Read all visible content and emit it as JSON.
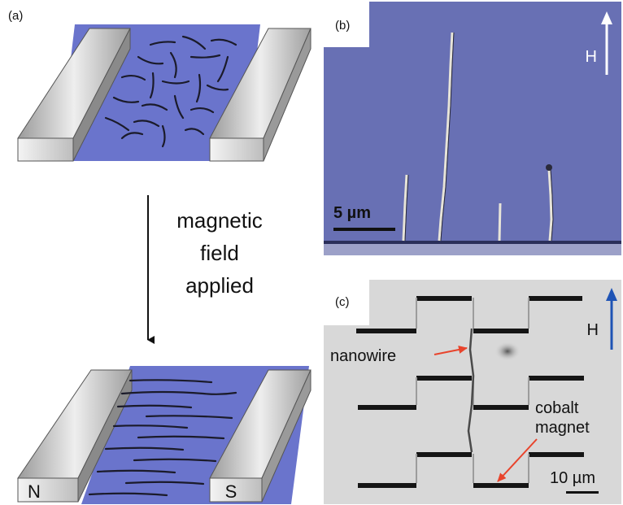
{
  "panels": {
    "a": {
      "label": "(a)",
      "arrow_text": [
        "magnetic",
        "field",
        "applied"
      ],
      "pole_left": "N",
      "pole_right": "S"
    },
    "b": {
      "label": "(b)",
      "field_label": "H",
      "scale_label": "5 µm"
    },
    "c": {
      "label": "(c)",
      "field_label": "H",
      "nanowire_label": "nanowire",
      "magnet_label": [
        "cobalt",
        "magnet"
      ],
      "scale_label": "10 µm"
    }
  },
  "colors": {
    "channel": "#6a74cc",
    "electrode_top": "#e0e0e0",
    "electrode_side": "#a9a9a9",
    "micrograph_b": "#6870b4",
    "micrograph_c": "#d8d8d8",
    "pointer": "#e8442c",
    "field_arrow_c": "#1f54b5"
  }
}
